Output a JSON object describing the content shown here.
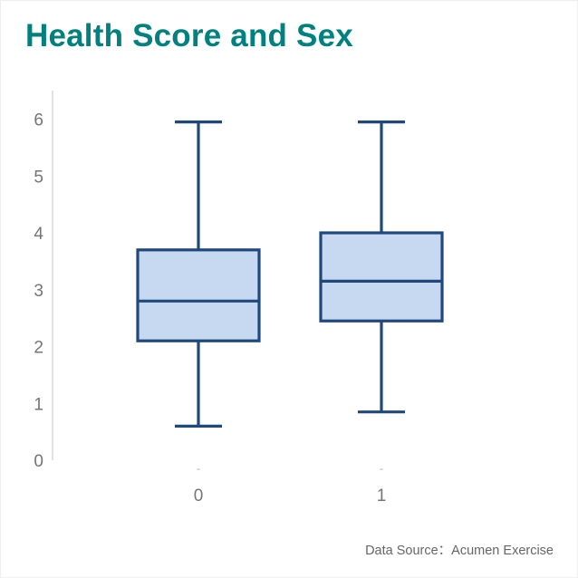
{
  "title": "Health Score and Sex",
  "source": "Data Source：Acumen Exercise",
  "colors": {
    "title": "#00807f",
    "box_fill": "#c6d9f0",
    "box_stroke": "#1f497d",
    "axis": "#d9d9d9",
    "tick_text": "#757575"
  },
  "chart_data": {
    "type": "box",
    "title": "Health Score and Sex",
    "xlabel": "",
    "ylabel": "",
    "categories": [
      "0",
      "1"
    ],
    "ylim": [
      0,
      6.4
    ],
    "yticks": [
      0,
      1,
      2,
      3,
      4,
      5,
      6
    ],
    "boxes": [
      {
        "category": "0",
        "whisker_low": 0.6,
        "q1": 2.1,
        "median": 2.8,
        "q3": 3.7,
        "whisker_high": 5.95
      },
      {
        "category": "1",
        "whisker_low": 0.85,
        "q1": 2.45,
        "median": 3.15,
        "q3": 4.0,
        "whisker_high": 5.95
      }
    ],
    "grid": false,
    "legend": "none"
  }
}
